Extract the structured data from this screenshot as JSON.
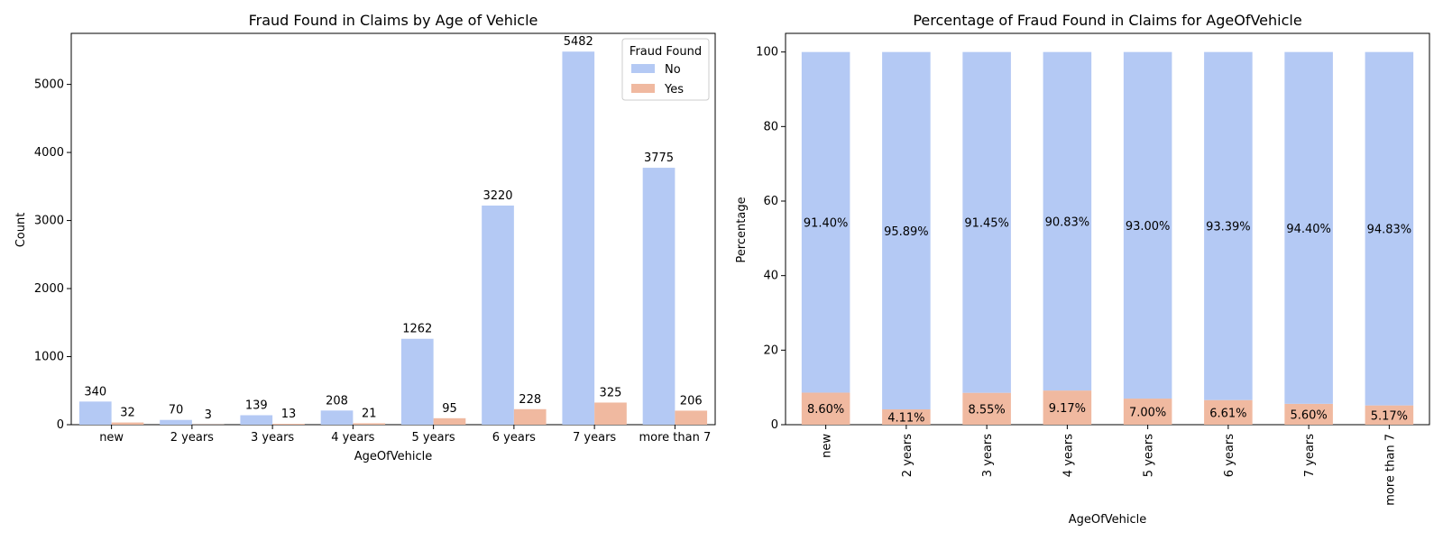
{
  "colors": {
    "no": "#b4c9f4",
    "yes": "#f0b9a0",
    "axis": "#000000",
    "legend_border": "#cccccc"
  },
  "chart_data": [
    {
      "type": "bar",
      "title": "Fraud Found in Claims by Age of Vehicle",
      "xlabel": "AgeOfVehicle",
      "ylabel": "Count",
      "categories": [
        "new",
        "2 years",
        "3 years",
        "4 years",
        "5 years",
        "6 years",
        "7 years",
        "more than 7"
      ],
      "ylim": [
        0,
        5750
      ],
      "yticks": [
        0,
        1000,
        2000,
        3000,
        4000,
        5000
      ],
      "legend": {
        "title": "Fraud Found",
        "position": "top-right"
      },
      "series": [
        {
          "name": "No",
          "values": [
            340,
            70,
            139,
            208,
            1262,
            3220,
            5482,
            3775
          ]
        },
        {
          "name": "Yes",
          "values": [
            32,
            3,
            13,
            21,
            95,
            228,
            325,
            206
          ]
        }
      ],
      "grid": false
    },
    {
      "type": "bar",
      "stacked": true,
      "title": "Percentage of Fraud Found in Claims for AgeOfVehicle",
      "xlabel": "AgeOfVehicle",
      "ylabel": "Percentage",
      "categories": [
        "new",
        "2 years",
        "3 years",
        "4 years",
        "5 years",
        "6 years",
        "7 years",
        "more than 7"
      ],
      "ylim": [
        0,
        105
      ],
      "yticks": [
        0,
        20,
        40,
        60,
        80,
        100
      ],
      "series": [
        {
          "name": "Yes",
          "values": [
            8.6,
            4.11,
            8.55,
            9.17,
            7.0,
            6.61,
            5.6,
            5.17
          ],
          "labels": [
            "8.60%",
            "4.11%",
            "8.55%",
            "9.17%",
            "7.00%",
            "6.61%",
            "5.60%",
            "5.17%"
          ]
        },
        {
          "name": "No",
          "values": [
            91.4,
            95.89,
            91.45,
            90.83,
            93.0,
            93.39,
            94.4,
            94.83
          ],
          "labels": [
            "91.40%",
            "95.89%",
            "91.45%",
            "90.83%",
            "93.00%",
            "93.39%",
            "94.40%",
            "94.83%"
          ]
        }
      ],
      "grid": false
    }
  ]
}
